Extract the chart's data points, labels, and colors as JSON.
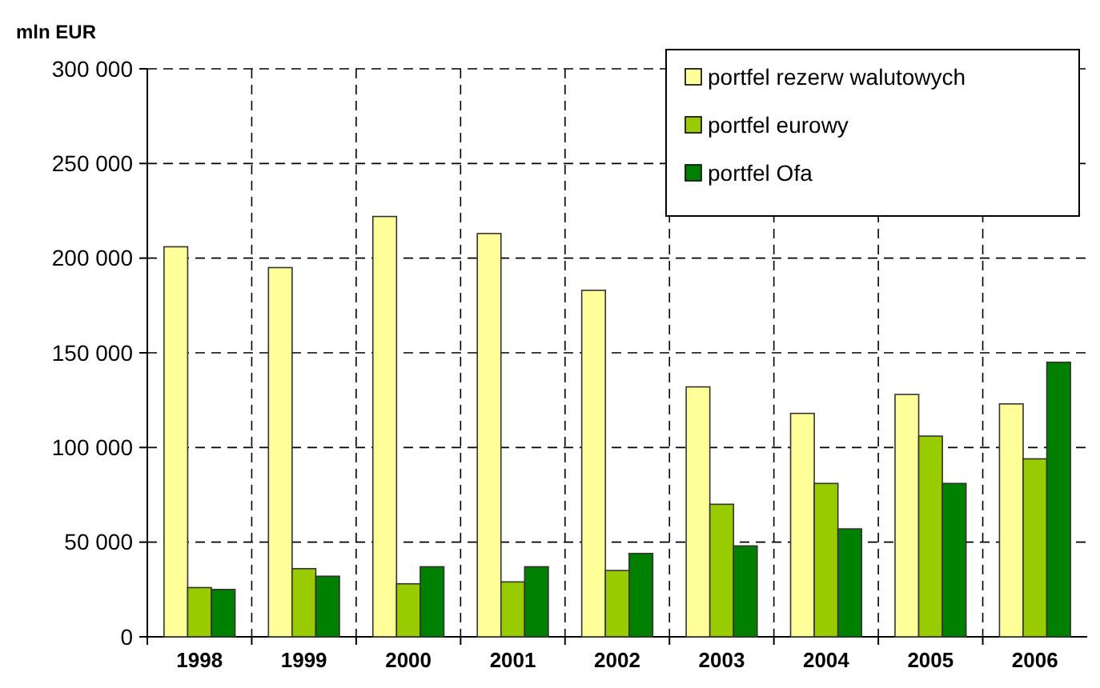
{
  "chart_data": {
    "type": "bar",
    "ylabel": "mln EUR",
    "categories": [
      "1998",
      "1999",
      "2000",
      "2001",
      "2002",
      "2003",
      "2004",
      "2005",
      "2006"
    ],
    "series": [
      {
        "name": "portfel rezerw walutowych",
        "color": "#ffff99",
        "values": [
          206000,
          195000,
          222000,
          213000,
          183000,
          132000,
          118000,
          128000,
          123000
        ]
      },
      {
        "name": "portfel eurowy",
        "color": "#99cc00",
        "values": [
          26000,
          36000,
          28000,
          29000,
          35000,
          70000,
          81000,
          106000,
          94000
        ]
      },
      {
        "name": "portfel Ofa",
        "color": "#008000",
        "values": [
          25000,
          32000,
          37000,
          37000,
          44000,
          48000,
          57000,
          81000,
          145000
        ]
      }
    ],
    "ylim": [
      0,
      300000
    ],
    "yticks": [
      0,
      {
        "value": 50000,
        "label": "50 000"
      },
      {
        "value": 100000,
        "label": "100 000"
      },
      {
        "value": 150000,
        "label": "150 000"
      },
      {
        "value": 200000,
        "label": "200 000"
      },
      {
        "value": 250000,
        "label": "250 000"
      },
      {
        "value": 300000,
        "label": "300 000"
      }
    ],
    "grid": true,
    "legend": "top right"
  }
}
